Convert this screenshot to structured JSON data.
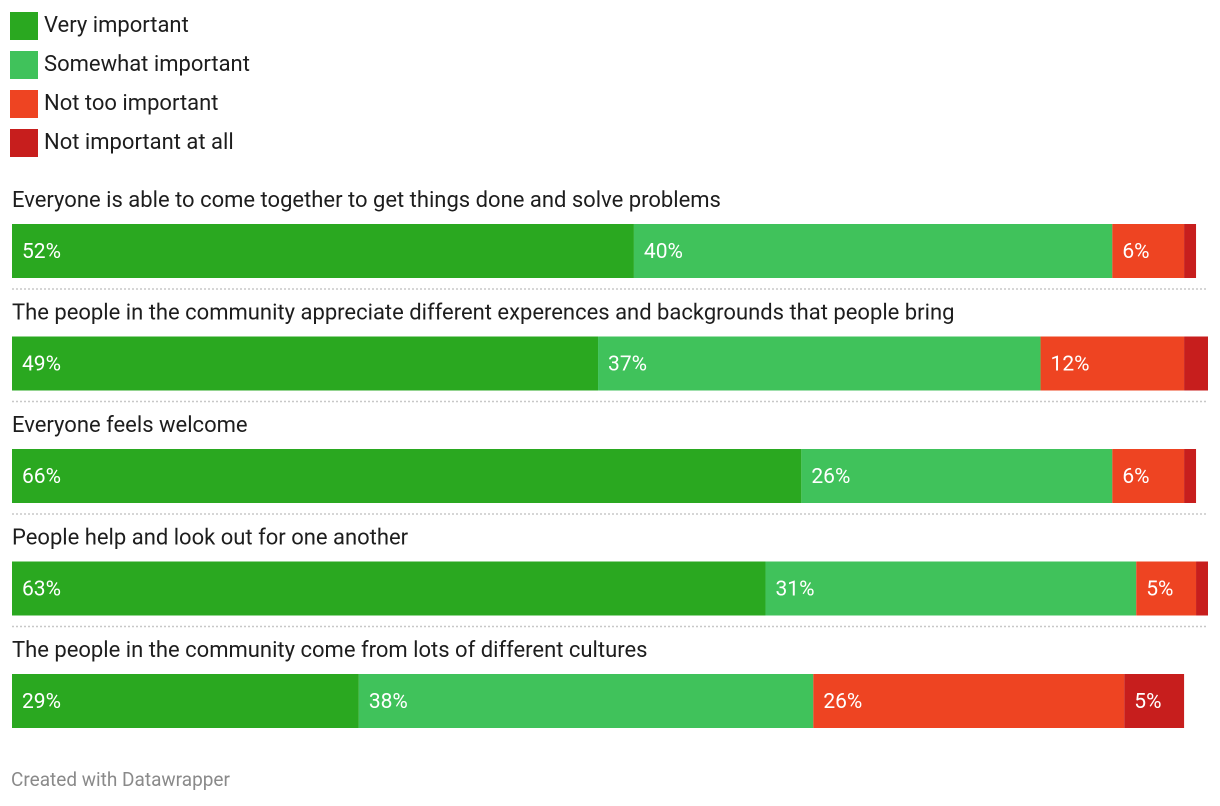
{
  "colors": {
    "very": "#2aa820",
    "somewhat": "#40c25b",
    "not_too": "#ee4422",
    "not_at_all": "#c71e1d"
  },
  "legend": [
    {
      "label": "Very important",
      "color": "#2aa820"
    },
    {
      "label": "Somewhat important",
      "color": "#40c25b"
    },
    {
      "label": "Not too important",
      "color": "#ee4422"
    },
    {
      "label": "Not important at all",
      "color": "#c71e1d"
    }
  ],
  "chart_data": {
    "type": "bar",
    "orientation": "horizontal-stacked",
    "unit": "%",
    "series_names": [
      "Very important",
      "Somewhat important",
      "Not too important",
      "Not important at all"
    ],
    "rows": [
      {
        "label": "Everyone is able to come together to get things done and solve problems",
        "values": [
          52,
          40,
          6,
          1
        ],
        "labels": [
          "52%",
          "40%",
          "6%",
          ""
        ]
      },
      {
        "label": "The people in the community appreciate different experences and backgrounds that people bring",
        "values": [
          49,
          37,
          12,
          2
        ],
        "labels": [
          "49%",
          "37%",
          "12%",
          ""
        ]
      },
      {
        "label": "Everyone feels welcome",
        "values": [
          66,
          26,
          6,
          1
        ],
        "labels": [
          "66%",
          "26%",
          "6%",
          ""
        ]
      },
      {
        "label": "People help and look out for one another",
        "values": [
          63,
          31,
          5,
          1
        ],
        "labels": [
          "63%",
          "31%",
          "5%",
          ""
        ]
      },
      {
        "label": "The people in the community come from lots of different cultures",
        "values": [
          29,
          38,
          26,
          5
        ],
        "labels": [
          "29%",
          "38%",
          "26%",
          "5%"
        ]
      }
    ],
    "xlim": [
      0,
      100
    ]
  },
  "footer": {
    "credit": "Created with Datawrapper"
  }
}
